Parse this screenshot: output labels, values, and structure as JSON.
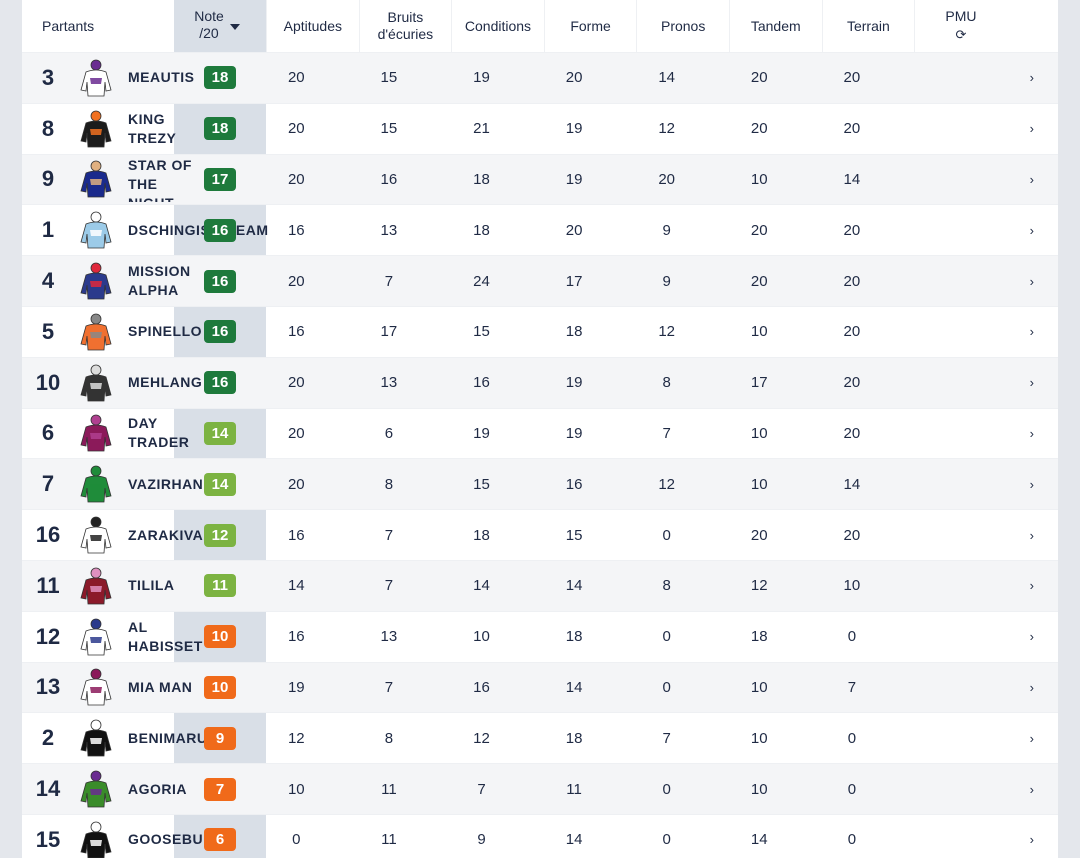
{
  "header": {
    "partants": "Partants",
    "note_line1": "Note",
    "note_line2": "/20",
    "aptitudes": "Aptitudes",
    "bruits_line1": "Bruits",
    "bruits_line2": "d'écuries",
    "conditions": "Conditions",
    "forme": "Forme",
    "pronos": "Pronos",
    "tandem": "Tandem",
    "terrain": "Terrain",
    "pmu": "PMU",
    "refresh_glyph": "⟳",
    "chevron_glyph": "›"
  },
  "colors": {
    "dark_green": "#1e7a3c",
    "light_green": "#7cb342",
    "orange": "#f06a1a"
  },
  "rows": [
    {
      "num": "3",
      "name": "MEAUTIS",
      "note": "18",
      "aptitudes": "20",
      "bruits": "15",
      "conditions": "19",
      "forme": "20",
      "pronos": "14",
      "tandem": "20",
      "terrain": "20",
      "color": "dark_green"
    },
    {
      "num": "8",
      "name": "KING TREZY",
      "note": "18",
      "aptitudes": "20",
      "bruits": "15",
      "conditions": "21",
      "forme": "19",
      "pronos": "12",
      "tandem": "20",
      "terrain": "20",
      "color": "dark_green"
    },
    {
      "num": "9",
      "name": "STAR OF THE NIGHT",
      "note": "17",
      "aptitudes": "20",
      "bruits": "16",
      "conditions": "18",
      "forme": "19",
      "pronos": "20",
      "tandem": "10",
      "terrain": "14",
      "color": "dark_green"
    },
    {
      "num": "1",
      "name": "DSCHINGIS DREAM",
      "note": "16",
      "aptitudes": "16",
      "bruits": "13",
      "conditions": "18",
      "forme": "20",
      "pronos": "9",
      "tandem": "20",
      "terrain": "20",
      "color": "dark_green"
    },
    {
      "num": "4",
      "name": "MISSION ALPHA",
      "note": "16",
      "aptitudes": "20",
      "bruits": "7",
      "conditions": "24",
      "forme": "17",
      "pronos": "9",
      "tandem": "20",
      "terrain": "20",
      "color": "dark_green"
    },
    {
      "num": "5",
      "name": "SPINELLO",
      "note": "16",
      "aptitudes": "16",
      "bruits": "17",
      "conditions": "15",
      "forme": "18",
      "pronos": "12",
      "tandem": "10",
      "terrain": "20",
      "color": "dark_green"
    },
    {
      "num": "10",
      "name": "MEHLANG",
      "note": "16",
      "aptitudes": "20",
      "bruits": "13",
      "conditions": "16",
      "forme": "19",
      "pronos": "8",
      "tandem": "17",
      "terrain": "20",
      "color": "dark_green"
    },
    {
      "num": "6",
      "name": "DAY TRADER",
      "note": "14",
      "aptitudes": "20",
      "bruits": "6",
      "conditions": "19",
      "forme": "19",
      "pronos": "7",
      "tandem": "10",
      "terrain": "20",
      "color": "light_green"
    },
    {
      "num": "7",
      "name": "VAZIRHAN",
      "note": "14",
      "aptitudes": "20",
      "bruits": "8",
      "conditions": "15",
      "forme": "16",
      "pronos": "12",
      "tandem": "10",
      "terrain": "14",
      "color": "light_green"
    },
    {
      "num": "16",
      "name": "ZARAKIVA",
      "note": "12",
      "aptitudes": "16",
      "bruits": "7",
      "conditions": "18",
      "forme": "15",
      "pronos": "0",
      "tandem": "20",
      "terrain": "20",
      "color": "light_green"
    },
    {
      "num": "11",
      "name": "TILILA",
      "note": "11",
      "aptitudes": "14",
      "bruits": "7",
      "conditions": "14",
      "forme": "14",
      "pronos": "8",
      "tandem": "12",
      "terrain": "10",
      "color": "light_green"
    },
    {
      "num": "12",
      "name": "AL HABISSET",
      "note": "10",
      "aptitudes": "16",
      "bruits": "13",
      "conditions": "10",
      "forme": "18",
      "pronos": "0",
      "tandem": "18",
      "terrain": "0",
      "color": "orange"
    },
    {
      "num": "13",
      "name": "MIA MAN",
      "note": "10",
      "aptitudes": "19",
      "bruits": "7",
      "conditions": "16",
      "forme": "14",
      "pronos": "0",
      "tandem": "10",
      "terrain": "7",
      "color": "orange"
    },
    {
      "num": "2",
      "name": "BENIMARU",
      "note": "9",
      "aptitudes": "12",
      "bruits": "8",
      "conditions": "12",
      "forme": "18",
      "pronos": "7",
      "tandem": "10",
      "terrain": "0",
      "color": "orange"
    },
    {
      "num": "14",
      "name": "AGORIA",
      "note": "7",
      "aptitudes": "10",
      "bruits": "11",
      "conditions": "7",
      "forme": "11",
      "pronos": "0",
      "tandem": "10",
      "terrain": "0",
      "color": "orange"
    },
    {
      "num": "15",
      "name": "GOOSEBUMPS",
      "note": "6",
      "aptitudes": "0",
      "bruits": "11",
      "conditions": "9",
      "forme": "14",
      "pronos": "0",
      "tandem": "14",
      "terrain": "0",
      "color": "orange"
    }
  ]
}
